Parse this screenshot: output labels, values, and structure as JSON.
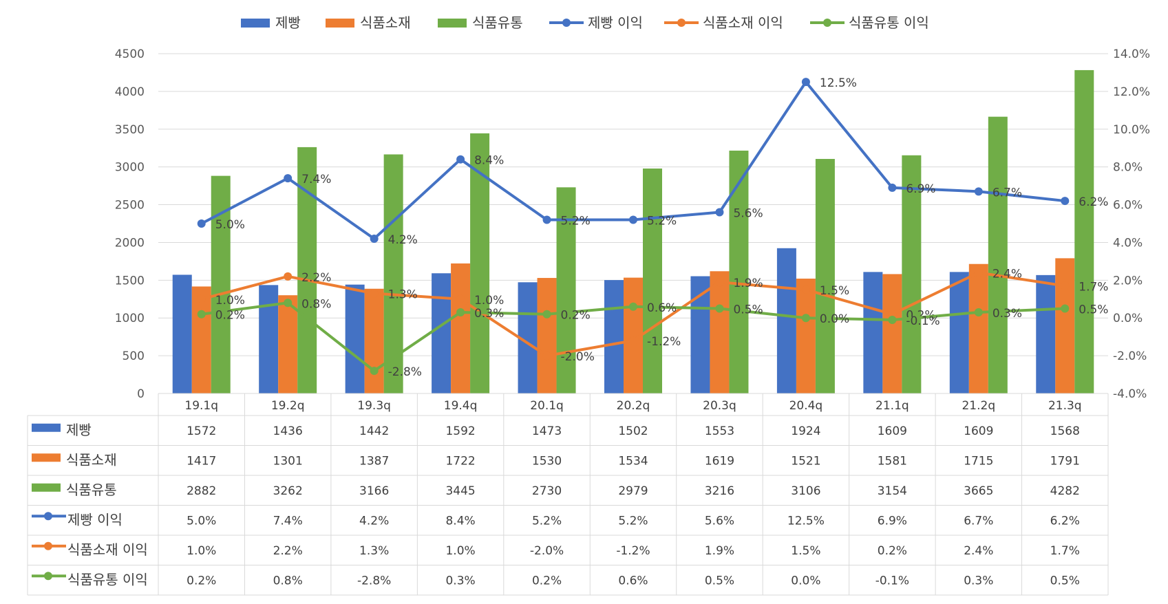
{
  "chart_data": {
    "type": "bar",
    "combo": "bar + line (secondary axis) with data table",
    "categories": [
      "19.1q",
      "19.2q",
      "19.3q",
      "19.4q",
      "20.1q",
      "20.2q",
      "20.3q",
      "20.4q",
      "21.1q",
      "21.2q",
      "21.3q"
    ],
    "bar_series": [
      {
        "name": "제빵",
        "color": "#4472C4",
        "values": [
          1572,
          1436,
          1442,
          1592,
          1473,
          1502,
          1553,
          1924,
          1609,
          1609,
          1568
        ]
      },
      {
        "name": "식품소재",
        "color": "#ED7D31",
        "values": [
          1417,
          1301,
          1387,
          1722,
          1530,
          1534,
          1619,
          1521,
          1581,
          1715,
          1791
        ]
      },
      {
        "name": "식품유통",
        "color": "#70AD47",
        "values": [
          2882,
          3262,
          3166,
          3445,
          2730,
          2979,
          3216,
          3106,
          3154,
          3665,
          4282
        ]
      }
    ],
    "line_series": [
      {
        "name": "제빵 이익",
        "color": "#4472C4",
        "values": [
          5.0,
          7.4,
          4.2,
          8.4,
          5.2,
          5.2,
          5.6,
          12.5,
          6.9,
          6.7,
          6.2
        ],
        "labels": [
          "5.0%",
          "7.4%",
          "4.2%",
          "8.4%",
          "5.2%",
          "5.2%",
          "5.6%",
          "12.5%",
          "6.9%",
          "6.7%",
          "6.2%"
        ]
      },
      {
        "name": "식품소재 이익",
        "color": "#ED7D31",
        "values": [
          1.0,
          2.2,
          1.3,
          1.0,
          -2.0,
          -1.2,
          1.9,
          1.5,
          0.2,
          2.4,
          1.7
        ],
        "labels": [
          "1.0%",
          "2.2%",
          "1.3%",
          "1.0%",
          "-2.0%",
          "-1.2%",
          "1.9%",
          "1.5%",
          "0.2%",
          "2.4%",
          "1.7%"
        ]
      },
      {
        "name": "식품유통 이익",
        "color": "#70AD47",
        "values": [
          0.2,
          0.8,
          -2.8,
          0.3,
          0.2,
          0.6,
          0.5,
          0.0,
          -0.1,
          0.3,
          0.5
        ],
        "labels": [
          "0.2%",
          "0.8%",
          "-2.8%",
          "0.3%",
          "0.2%",
          "0.6%",
          "0.5%",
          "0.0%",
          "-0.1%",
          "0.3%",
          "0.5%"
        ]
      }
    ],
    "y_left": {
      "min": 0,
      "max": 4500,
      "step": 500,
      "ticks": [
        "0",
        "500",
        "1000",
        "1500",
        "2000",
        "2500",
        "3000",
        "3500",
        "4000",
        "4500"
      ]
    },
    "y_right": {
      "min": -4,
      "max": 14,
      "step": 2,
      "ticks": [
        "-4.0%",
        "-2.0%",
        "0.0%",
        "2.0%",
        "4.0%",
        "6.0%",
        "8.0%",
        "10.0%",
        "12.0%",
        "14.0%"
      ]
    },
    "grid": true,
    "legend_position": "top"
  }
}
